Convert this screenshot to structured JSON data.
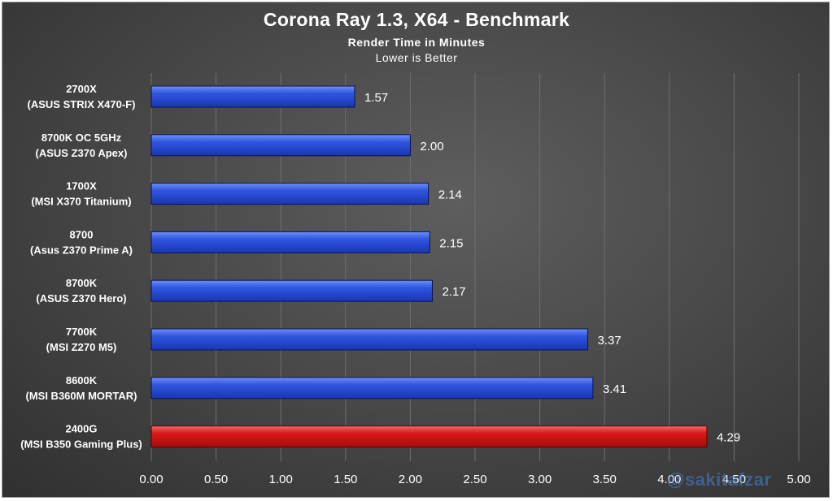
{
  "chart_data": {
    "type": "bar",
    "orientation": "horizontal",
    "title": "Corona Ray 1.3, X64 - Benchmark",
    "subtitle": "Render Time in Minutes",
    "note": "Lower is Better",
    "categories": [
      [
        "2700X",
        "(ASUS STRIX X470-F)"
      ],
      [
        "8700K OC 5GHz",
        "(ASUS Z370 Apex)"
      ],
      [
        "1700X",
        "(MSI X370 Titanium)"
      ],
      [
        "8700",
        "(Asus Z370 Prime A)"
      ],
      [
        "8700K",
        "(ASUS Z370 Hero)"
      ],
      [
        "7700K",
        "(MSI Z270 M5)"
      ],
      [
        "8600K",
        "(MSI B360M MORTAR)"
      ],
      [
        "2400G",
        "(MSI B350 Gaming Plus)"
      ]
    ],
    "values": [
      1.57,
      2.0,
      2.14,
      2.15,
      2.17,
      3.37,
      3.41,
      4.29
    ],
    "value_labels": [
      "1.57",
      "2.00",
      "2.14",
      "2.15",
      "2.17",
      "3.37",
      "3.41",
      "4.29"
    ],
    "highlight_index": 7,
    "colors": {
      "bar": "#2244cc",
      "highlight": "#cc1111",
      "text": "#ffffff",
      "grid": "#6e6e6e"
    },
    "xlim": [
      0,
      5
    ],
    "xticks": [
      "0.00",
      "0.50",
      "1.00",
      "1.50",
      "2.00",
      "2.50",
      "3.00",
      "3.50",
      "4.00",
      "4.50",
      "5.00"
    ],
    "grid": "vertical"
  },
  "watermark": "@sakitafzar"
}
